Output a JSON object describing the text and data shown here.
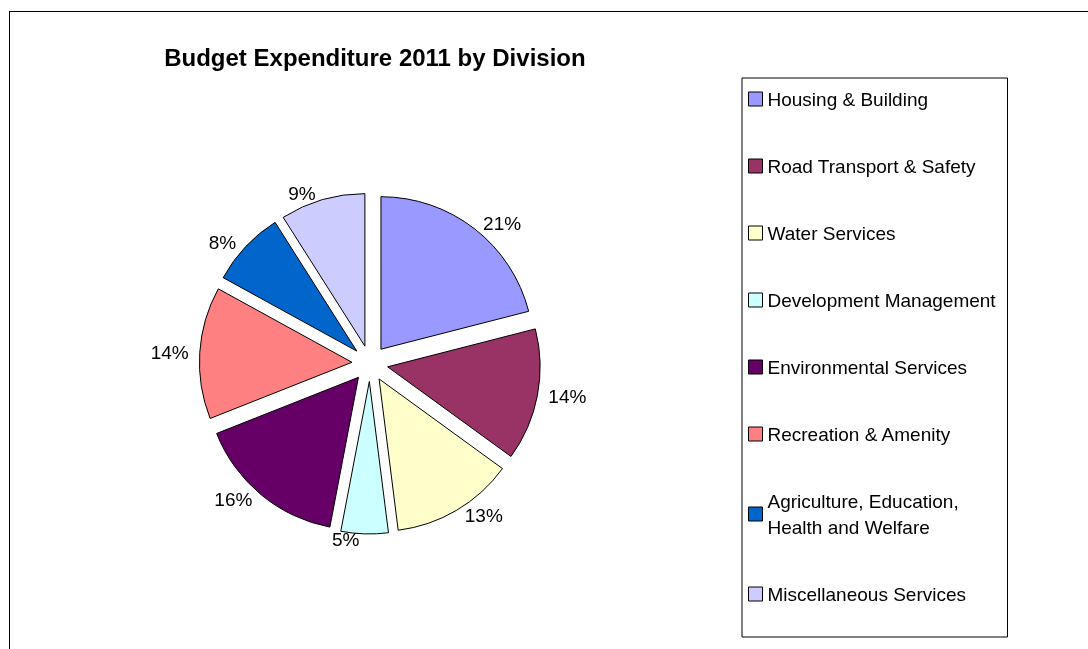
{
  "chart_data": {
    "type": "pie",
    "title": "Budget Expenditure 2011 by Division",
    "categories": [
      "Housing & Building",
      "Road Transport & Safety",
      "Water Services",
      "Development Management",
      "Environmental Services",
      "Recreation & Amenity",
      "Agriculture, Education, Health and Welfare",
      "Miscellaneous Services"
    ],
    "values": [
      21,
      14,
      13,
      5,
      16,
      14,
      8,
      9
    ],
    "colors": [
      "#9999ff",
      "#993366",
      "#ffffcc",
      "#ccffff",
      "#660066",
      "#ff8080",
      "#0066cc",
      "#ccccff"
    ],
    "value_labels": [
      "21%",
      "14%",
      "13%",
      "5%",
      "16%",
      "14%",
      "8%",
      "9%"
    ],
    "legend": "right"
  }
}
